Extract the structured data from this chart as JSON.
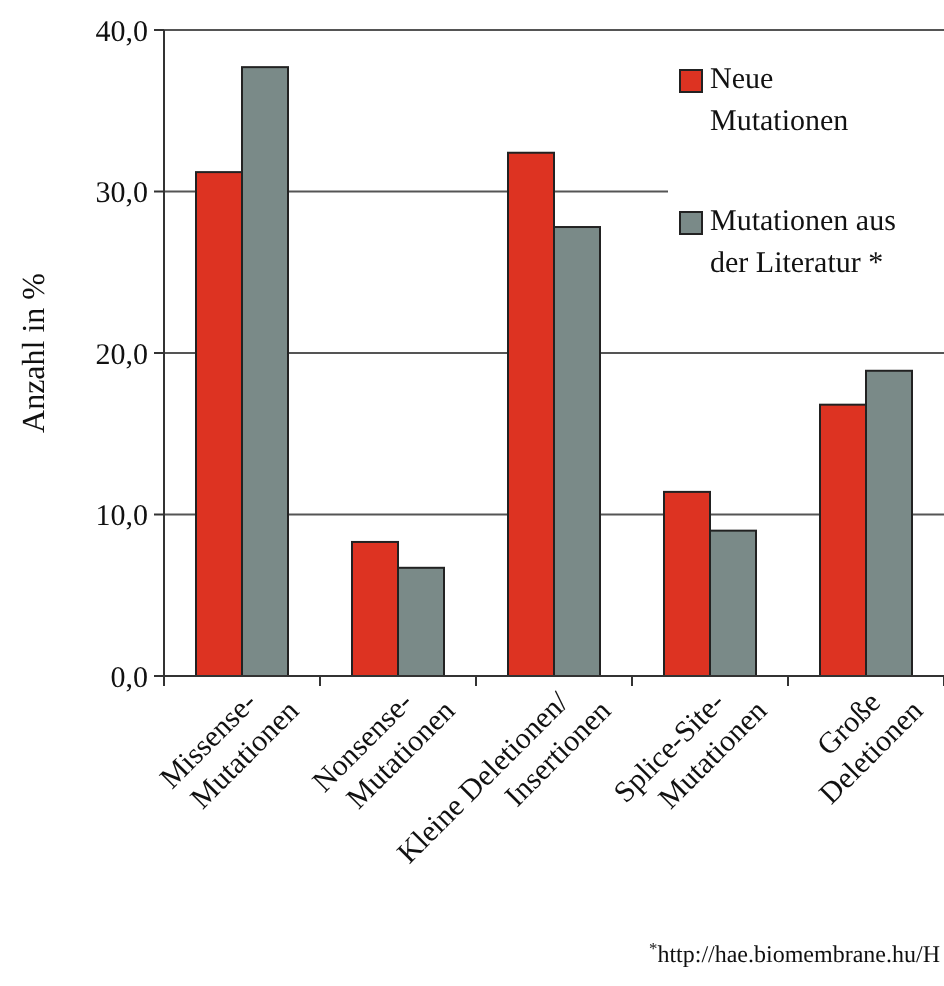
{
  "chart_data": {
    "type": "bar",
    "ylabel": "Anzahl in %",
    "categories": [
      "Missense-\nMutationen",
      "Nonsense-\nMutationen",
      "Kleine Deletionen/\nInsertionen",
      "Splice-Site-\nMutationen",
      "Große\nDeletionen"
    ],
    "series": [
      {
        "name": "Neue\nMutationen",
        "color": "#dd3322",
        "values": [
          31.2,
          8.3,
          32.4,
          11.4,
          16.8
        ]
      },
      {
        "name": "Mutationen aus\nder Literatur *",
        "color": "#7a8a88",
        "values": [
          37.7,
          6.7,
          27.8,
          9.0,
          18.9
        ]
      }
    ],
    "ylim": [
      0,
      40
    ],
    "yticks": [
      {
        "value": 0,
        "label": "0,0"
      },
      {
        "value": 10,
        "label": "10,0"
      },
      {
        "value": 20,
        "label": "20,0"
      },
      {
        "value": 30,
        "label": "30,0"
      },
      {
        "value": 40,
        "label": "40,0"
      }
    ],
    "grid": "y",
    "legend": "top right",
    "annotations": [
      "$^{*}$http://hae.biomembrane.hu/H"
    ]
  }
}
